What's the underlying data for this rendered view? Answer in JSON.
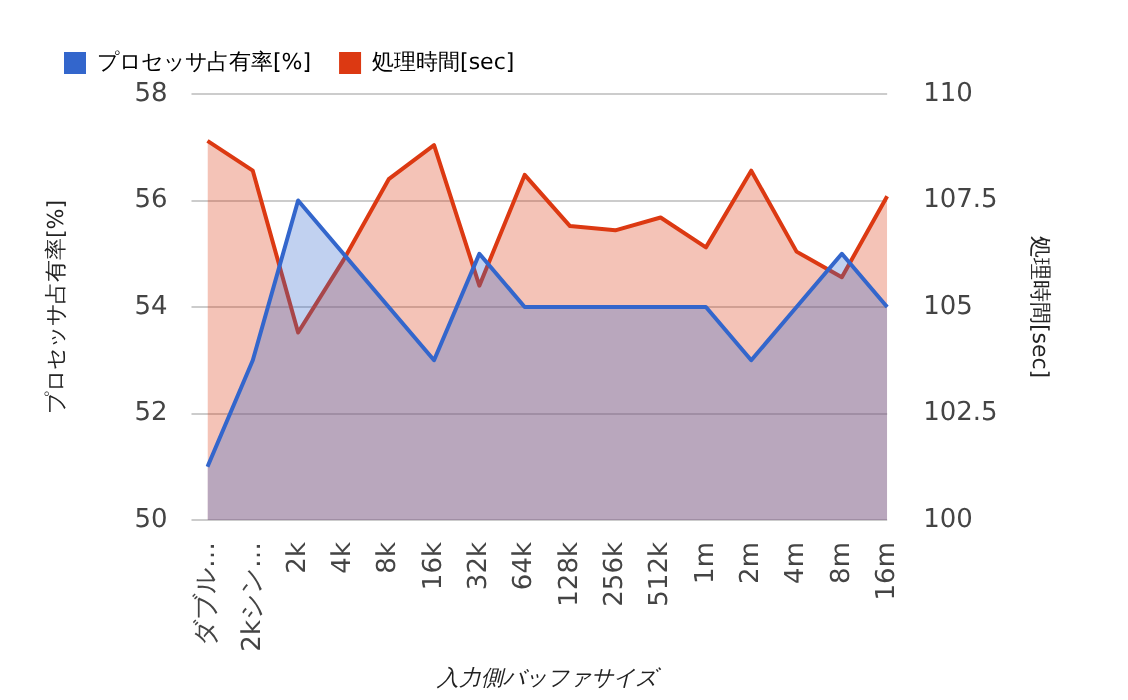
{
  "chart_data": {
    "type": "area",
    "xlabel": "入力側バッファサイズ",
    "ylabel": "プロセッサ占有率[%]",
    "y2label": "処理時間[sec]",
    "categories": [
      "ダブル…",
      "2kシン…",
      "2k",
      "4k",
      "8k",
      "16k",
      "32k",
      "64k",
      "128k",
      "256k",
      "512k",
      "1m",
      "2m",
      "4m",
      "8m",
      "16m"
    ],
    "series": [
      {
        "name": "プロセッサ占有率[%]",
        "color": "#3366cc",
        "values": [
          51,
          53,
          56,
          55,
          54,
          53,
          55,
          54,
          54,
          54,
          54,
          54,
          53,
          54,
          55,
          54
        ]
      },
      {
        "name": "処理時間[sec]",
        "color": "#dc3912",
        "axis": "y2",
        "values": [
          108.9,
          108.2,
          104.4,
          106.1,
          108.0,
          108.8,
          105.5,
          108.1,
          106.9,
          106.8,
          107.1,
          106.4,
          108.2,
          106.3,
          105.7,
          107.6
        ]
      }
    ],
    "ylim": [
      50,
      58
    ],
    "yticks": [
      50,
      52,
      54,
      56,
      58
    ],
    "y2lim": [
      100,
      110
    ],
    "y2ticks": [
      100,
      102.5,
      105,
      107.5,
      110
    ],
    "grid": "y",
    "legend": "top left",
    "marker": "none",
    "line_style": "solid"
  }
}
